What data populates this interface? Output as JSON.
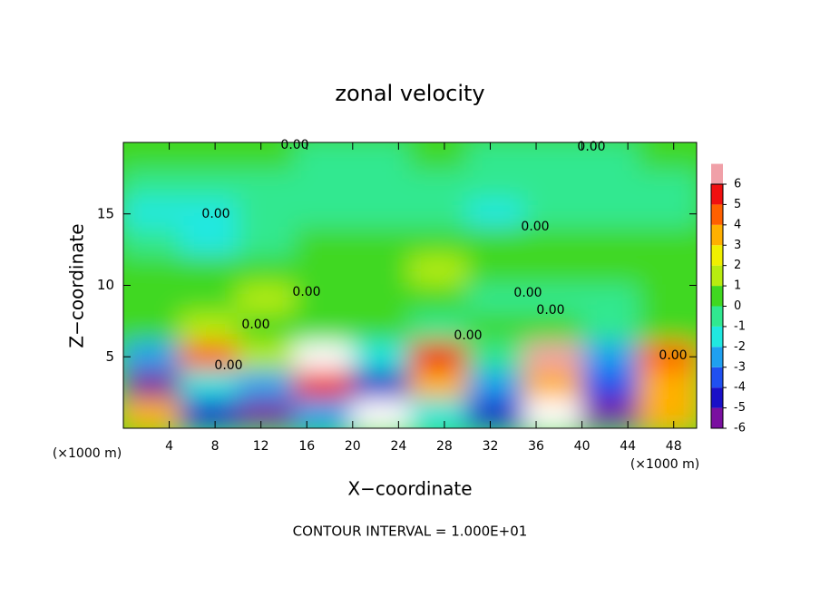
{
  "chart_data": {
    "type": "contour",
    "title": "zonal velocity",
    "x_label": "X−coordinate",
    "y_label": "Z−coordinate",
    "x_unit_left": "(×1000 m)",
    "x_unit_right": "(×1000 m)",
    "footer": "CONTOUR INTERVAL = 1.000E+01",
    "xlim": [
      0,
      50
    ],
    "ylim": [
      0,
      20
    ],
    "xticks": [
      4,
      8,
      12,
      16,
      20,
      24,
      28,
      32,
      36,
      40,
      44,
      48
    ],
    "yticks": [
      5,
      10,
      15
    ],
    "x": [
      0,
      5,
      10,
      15,
      20,
      25,
      30,
      35,
      40,
      45,
      50
    ],
    "y": [
      20,
      18,
      16,
      14,
      12,
      10,
      8,
      6,
      4,
      2,
      0
    ],
    "z": [
      [
        0.3,
        0.2,
        0,
        -0.3,
        -0.2,
        0,
        -0.3,
        -0.5,
        -0.4,
        0
      ],
      [
        -0.5,
        -0.8,
        -0.5,
        -0.3,
        -0.4,
        -0.6,
        -0.7,
        -0.8,
        -0.6,
        -0.4
      ],
      [
        -1.2,
        -1.5,
        -0.8,
        -0.5,
        -0.7,
        -1,
        -1.2,
        -1,
        -0.9,
        -0.6
      ],
      [
        -0.5,
        -1.5,
        -0.3,
        0.2,
        0,
        0.3,
        0.2,
        0.4,
        0.3,
        0.1
      ],
      [
        0.8,
        0.5,
        0.3,
        0.5,
        0.6,
        1,
        0.8,
        0.5,
        0.6,
        0.4
      ],
      [
        0.3,
        0.5,
        1.2,
        0.8,
        0.5,
        0.3,
        -0.5,
        -0.8,
        -1,
        0.5
      ],
      [
        0.5,
        1,
        0.3,
        0.5,
        0.8,
        -0.3,
        0.5,
        0.3,
        -0.5,
        0.3
      ],
      [
        -3,
        4,
        1,
        7,
        -2,
        5,
        -1,
        6,
        -3,
        4
      ],
      [
        -6,
        -2,
        -3,
        5,
        -5,
        3,
        -3,
        3,
        -4,
        3
      ],
      [
        3,
        -5,
        -6,
        -3,
        7,
        -2,
        -5,
        8,
        -6,
        3
      ]
    ],
    "colorbar": {
      "ticks": [
        6,
        5,
        4,
        3,
        2,
        1,
        0,
        -1,
        -2,
        -3,
        -4,
        -5,
        -6
      ],
      "colors": [
        "#7a10a0",
        "#1a10c8",
        "#2050f0",
        "#1fa0f0",
        "#20e8e0",
        "#30e890",
        "#40d820",
        "#b8ec10",
        "#f0f000",
        "#ffb000",
        "#ff6000",
        "#f01010",
        "#f0a0a8"
      ],
      "above_color": "#ffffff"
    },
    "annotations": [
      "0.00",
      "0.00",
      "0.00",
      "0.00",
      "0.00",
      "0.00",
      "0.00",
      "0.00",
      "0.00",
      "0.00",
      "0.00"
    ]
  }
}
